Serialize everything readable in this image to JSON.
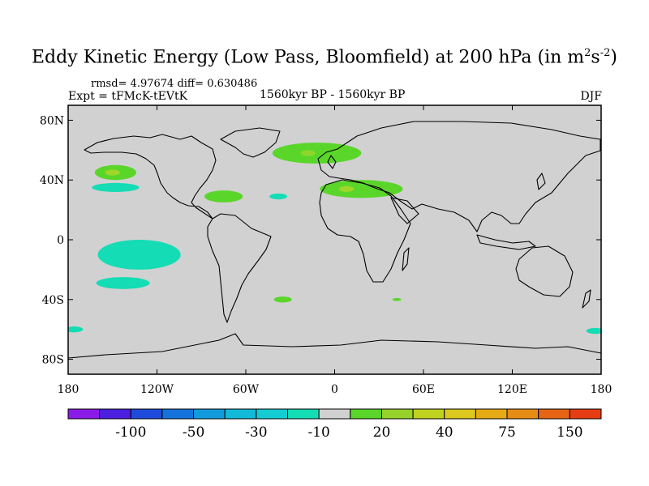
{
  "title": {
    "main": "Eddy Kinetic Energy (Low Pass, Bloomfield) at 200 hPa (in m",
    "sup1": "2",
    "mid": "s",
    "sup2": "-2",
    "close": ")"
  },
  "stats": "rmsd= 4.97674  diff= 0.630486",
  "experiment": "Expt = tFMcK-tEVtK",
  "period": "1560kyr BP - 1560kyr BP",
  "season": "DJF",
  "map": {
    "background": "#d1d1d1",
    "lat_labels": [
      {
        "label": "80N",
        "lat": 80
      },
      {
        "label": "40N",
        "lat": 40
      },
      {
        "label": "0",
        "lat": 0
      },
      {
        "label": "40S",
        "lat": -40
      },
      {
        "label": "80S",
        "lat": -80
      }
    ],
    "lon_labels": [
      {
        "label": "180",
        "lon": -180
      },
      {
        "label": "120W",
        "lon": -120
      },
      {
        "label": "60W",
        "lon": -60
      },
      {
        "label": "0",
        "lon": 0
      },
      {
        "label": "60E",
        "lon": 60
      },
      {
        "label": "120E",
        "lon": 120
      },
      {
        "label": "180",
        "lon": 180
      }
    ],
    "regions": [
      {
        "name": "north-atlantic-positive",
        "color": "#5ad62a",
        "lon": -12,
        "lat": 58,
        "rlon": 30,
        "rlat": 7
      },
      {
        "name": "north-atlantic-core",
        "color": "#8ed62a",
        "lon": -18,
        "lat": 58,
        "rlon": 5,
        "rlat": 2
      },
      {
        "name": "mediterranean-positive",
        "color": "#5ad62a",
        "lon": 18,
        "lat": 34,
        "rlon": 28,
        "rlat": 6
      },
      {
        "name": "mediterranean-core",
        "color": "#9ed62a",
        "lon": 8,
        "lat": 34,
        "rlon": 5,
        "rlat": 2
      },
      {
        "name": "north-pacific-positive",
        "color": "#5ad62a",
        "lon": -148,
        "lat": 45,
        "rlon": 14,
        "rlat": 5
      },
      {
        "name": "north-pacific-core",
        "color": "#9ed62a",
        "lon": -150,
        "lat": 45,
        "rlon": 5,
        "rlat": 2
      },
      {
        "name": "north-pacific-negative",
        "color": "#14dcb4",
        "lon": -148,
        "lat": 35,
        "rlon": 16,
        "rlat": 3
      },
      {
        "name": "gulf-positive",
        "color": "#5ad62a",
        "lon": -75,
        "lat": 29,
        "rlon": 13,
        "rlat": 4
      },
      {
        "name": "mid-atlantic-negative",
        "color": "#14dcb4",
        "lon": -38,
        "lat": 29,
        "rlon": 6,
        "rlat": 2
      },
      {
        "name": "tropical-pacific-negative",
        "color": "#14dcb4",
        "lon": -132,
        "lat": -10,
        "rlon": 28,
        "rlat": 10
      },
      {
        "name": "south-pacific-negative",
        "color": "#14dcb4",
        "lon": -143,
        "lat": -29,
        "rlon": 18,
        "rlat": 4
      },
      {
        "name": "south-atlantic-positive",
        "color": "#5ad62a",
        "lon": -35,
        "lat": -40,
        "rlon": 6,
        "rlat": 2
      },
      {
        "name": "south-indian-positive",
        "color": "#5ad62a",
        "lon": 42,
        "lat": -40,
        "rlon": 3,
        "rlat": 1
      },
      {
        "name": "southern-ocean-west",
        "color": "#14dcb4",
        "lon": -176,
        "lat": -60,
        "rlon": 6,
        "rlat": 2
      },
      {
        "name": "southern-ocean-east",
        "color": "#14dcb4",
        "lon": 176,
        "lat": -61,
        "rlon": 6,
        "rlat": 2
      }
    ]
  },
  "colorbar": {
    "colors": [
      "#8a1ae8",
      "#4b1ee0",
      "#1e4bdc",
      "#1473dc",
      "#129bdc",
      "#12b9d8",
      "#14ccd2",
      "#14dcb4",
      "#d1d1d1",
      "#5ad62a",
      "#96d22a",
      "#bed21e",
      "#dcc81e",
      "#e6aa14",
      "#e68c14",
      "#e66414",
      "#e63c14"
    ],
    "labels": [
      {
        "text": "-100",
        "index": 2
      },
      {
        "text": "-50",
        "index": 4
      },
      {
        "text": "-30",
        "index": 6
      },
      {
        "text": "-10",
        "index": 8
      },
      {
        "text": "20",
        "index": 10
      },
      {
        "text": "40",
        "index": 12
      },
      {
        "text": "75",
        "index": 14
      },
      {
        "text": "150",
        "index": 16
      }
    ]
  }
}
